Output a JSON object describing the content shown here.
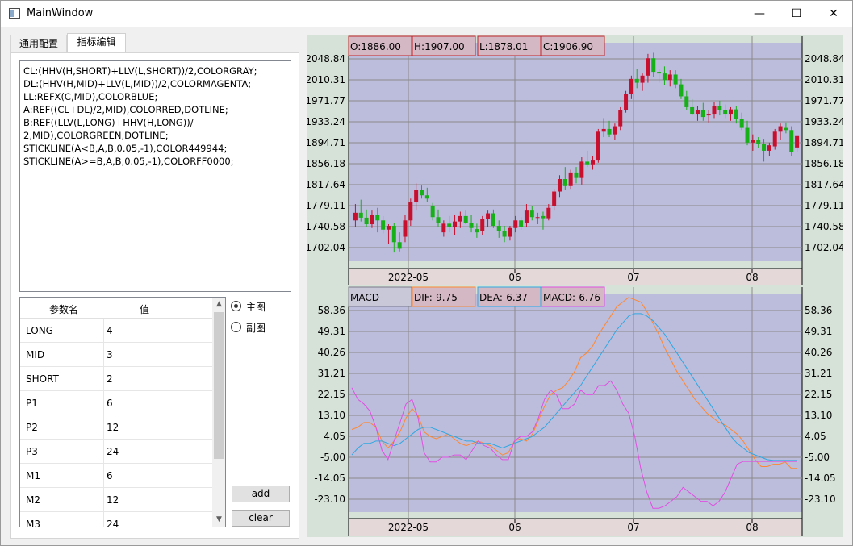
{
  "window": {
    "title": "MainWindow",
    "minimize": "—",
    "maximize": "☐",
    "close": "✕"
  },
  "tabs": [
    {
      "label": "通用配置"
    },
    {
      "label": "指标编辑"
    }
  ],
  "editor": {
    "code": "CL:(HHV(H,SHORT)+LLV(L,SHORT))/2,COLORGRAY;\nDL:(HHV(H,MID)+LLV(L,MID))/2,COLORMAGENTA;\nLL:REFX(C,MID),COLORBLUE;\nA:REF((CL+DL)/2,MID),COLORRED,DOTLINE;\nB:REF((LLV(L,LONG)+HHV(H,LONG))/\n2,MID),COLORGREEN,DOTLINE;\nSTICKLINE(A<B,A,B,0.05,-1),COLOR449944;\nSTICKLINE(A>=B,A,B,0.05,-1),COLORFF0000;"
  },
  "params": {
    "headers": [
      "参数名",
      "值"
    ],
    "rows": [
      {
        "name": "LONG",
        "value": "4"
      },
      {
        "name": "MID",
        "value": "3"
      },
      {
        "name": "SHORT",
        "value": "2"
      },
      {
        "name": "P1",
        "value": "6"
      },
      {
        "name": "P2",
        "value": "12"
      },
      {
        "name": "P3",
        "value": "24"
      },
      {
        "name": "M1",
        "value": "6"
      },
      {
        "name": "M2",
        "value": "12"
      },
      {
        "name": "M3",
        "value": "24"
      }
    ]
  },
  "radios": {
    "main": "主图",
    "sub": "副图",
    "selected": "main"
  },
  "buttons": {
    "add": "add",
    "clear": "clear"
  },
  "colors": {
    "plot_bg": "#bcbcdc",
    "outer_bg": "#d6e2d7",
    "up": "#c8102e",
    "down": "#18b018",
    "dif": "#ff8830",
    "dea": "#30a8e0",
    "macd": "#e050e0"
  },
  "chart_data": [
    {
      "type": "candlestick",
      "header": [
        "O:1886.00",
        "H:1907.00",
        "L:1878.01",
        "C:1906.90"
      ],
      "y_ticks": [
        "2048.84",
        "2010.31",
        "1971.77",
        "1933.24",
        "1894.71",
        "1856.18",
        "1817.64",
        "1779.11",
        "1740.58",
        "1702.04"
      ],
      "x_ticks": [
        "2022-05",
        "06",
        "07",
        "08"
      ],
      "ylim": [
        1684,
        2063
      ],
      "candles": [
        [
          1752,
          1782,
          1740,
          1766
        ],
        [
          1766,
          1790,
          1750,
          1757
        ],
        [
          1757,
          1772,
          1740,
          1745
        ],
        [
          1745,
          1770,
          1738,
          1762
        ],
        [
          1762,
          1775,
          1730,
          1752
        ],
        [
          1752,
          1760,
          1728,
          1735
        ],
        [
          1735,
          1745,
          1708,
          1742
        ],
        [
          1742,
          1748,
          1693,
          1712
        ],
        [
          1712,
          1730,
          1695,
          1700
        ],
        [
          1722,
          1762,
          1712,
          1752
        ],
        [
          1752,
          1792,
          1742,
          1785
        ],
        [
          1785,
          1820,
          1770,
          1808
        ],
        [
          1808,
          1816,
          1792,
          1798
        ],
        [
          1798,
          1812,
          1785,
          1792
        ],
        [
          1778,
          1784,
          1752,
          1758
        ],
        [
          1758,
          1772,
          1740,
          1748
        ],
        [
          1730,
          1752,
          1722,
          1746
        ],
        [
          1746,
          1760,
          1730,
          1740
        ],
        [
          1740,
          1762,
          1725,
          1750
        ],
        [
          1750,
          1768,
          1738,
          1760
        ],
        [
          1760,
          1770,
          1745,
          1748
        ],
        [
          1748,
          1762,
          1730,
          1738
        ],
        [
          1736,
          1746,
          1720,
          1730
        ],
        [
          1732,
          1760,
          1725,
          1755
        ],
        [
          1755,
          1770,
          1740,
          1765
        ],
        [
          1765,
          1772,
          1738,
          1742
        ],
        [
          1742,
          1752,
          1720,
          1732
        ],
        [
          1732,
          1742,
          1712,
          1722
        ],
        [
          1722,
          1742,
          1715,
          1738
        ],
        [
          1738,
          1760,
          1730,
          1752
        ],
        [
          1752,
          1758,
          1735,
          1740
        ],
        [
          1748,
          1782,
          1740,
          1770
        ],
        [
          1770,
          1778,
          1752,
          1758
        ],
        [
          1757,
          1766,
          1745,
          1758
        ],
        [
          1760,
          1768,
          1735,
          1756
        ],
        [
          1756,
          1782,
          1752,
          1775
        ],
        [
          1778,
          1810,
          1770,
          1805
        ],
        [
          1805,
          1835,
          1795,
          1828
        ],
        [
          1828,
          1850,
          1808,
          1815
        ],
        [
          1815,
          1845,
          1810,
          1840
        ],
        [
          1840,
          1850,
          1820,
          1830
        ],
        [
          1830,
          1868,
          1818,
          1860
        ],
        [
          1860,
          1880,
          1850,
          1855
        ],
        [
          1855,
          1870,
          1845,
          1862
        ],
        [
          1862,
          1920,
          1858,
          1915
        ],
        [
          1915,
          1940,
          1905,
          1920
        ],
        [
          1920,
          1935,
          1905,
          1910
        ],
        [
          1910,
          1930,
          1900,
          1925
        ],
        [
          1925,
          1960,
          1918,
          1955
        ],
        [
          1955,
          1990,
          1950,
          1985
        ],
        [
          1985,
          2018,
          1975,
          2012
        ],
        [
          2012,
          2030,
          1995,
          2005
        ],
        [
          2005,
          2022,
          1990,
          2018
        ],
        [
          2018,
          2058,
          2005,
          2050
        ],
        [
          2050,
          2060,
          2015,
          2025
        ],
        [
          2025,
          2030,
          2005,
          2022
        ],
        [
          2022,
          2035,
          2000,
          2010
        ],
        [
          2010,
          2028,
          1998,
          2020
        ],
        [
          2020,
          2028,
          1995,
          2002
        ],
        [
          2002,
          2012,
          1975,
          1980
        ],
        [
          1980,
          1990,
          1955,
          1960
        ],
        [
          1960,
          1975,
          1945,
          1948
        ],
        [
          1948,
          1962,
          1935,
          1955
        ],
        [
          1955,
          1968,
          1935,
          1942
        ],
        [
          1945,
          1955,
          1932,
          1948
        ],
        [
          1948,
          1970,
          1940,
          1962
        ],
        [
          1962,
          1972,
          1945,
          1955
        ],
        [
          1955,
          1965,
          1940,
          1948
        ],
        [
          1948,
          1960,
          1935,
          1956
        ],
        [
          1956,
          1962,
          1930,
          1938
        ],
        [
          1938,
          1950,
          1918,
          1922
        ],
        [
          1922,
          1935,
          1890,
          1895
        ],
        [
          1895,
          1910,
          1880,
          1900
        ],
        [
          1900,
          1905,
          1885,
          1892
        ],
        [
          1892,
          1902,
          1860,
          1880
        ],
        [
          1880,
          1895,
          1870,
          1890
        ],
        [
          1888,
          1920,
          1882,
          1915
        ],
        [
          1915,
          1930,
          1900,
          1925
        ],
        [
          1922,
          1932,
          1912,
          1918
        ],
        [
          1918,
          1925,
          1870,
          1878
        ],
        [
          1886,
          1907,
          1878,
          1906.9
        ]
      ]
    },
    {
      "type": "line",
      "header": [
        "MACD",
        "DIF:-9.75",
        "DEA:-6.37",
        "MACD:-6.76"
      ],
      "y_ticks": [
        "58.36",
        "49.31",
        "40.26",
        "31.21",
        "22.15",
        "13.10",
        "4.05",
        "-5.00",
        "-14.05",
        "-23.10"
      ],
      "x_ticks": [
        "2022-05",
        "06",
        "07",
        "08"
      ],
      "ylim": [
        -28.5,
        63.5
      ],
      "series": [
        {
          "name": "DIF",
          "values": [
            7,
            8,
            10,
            10,
            8,
            2,
            -1,
            2,
            6,
            12,
            16,
            13,
            6,
            4,
            3,
            4,
            5,
            3,
            1,
            0,
            1,
            2,
            1,
            0,
            -2,
            -4,
            -3,
            2,
            3,
            2,
            5,
            11,
            17,
            22,
            24,
            25,
            28,
            32,
            38,
            40,
            43,
            48,
            52,
            56,
            60,
            62,
            64,
            63,
            62,
            58,
            53,
            48,
            42,
            37,
            32,
            28,
            24,
            20,
            17,
            14,
            12,
            10,
            9,
            7,
            5,
            2,
            -2,
            -6,
            -9,
            -9,
            -8,
            -8,
            -7,
            -9.75,
            -9.75
          ]
        },
        {
          "name": "DEA",
          "values": [
            -4,
            -1,
            1,
            1,
            2,
            2,
            1,
            0,
            1,
            3,
            5,
            7,
            8,
            8,
            7,
            6,
            5,
            4,
            3,
            2,
            2,
            1,
            1,
            1,
            0,
            -1,
            0,
            1,
            2,
            3,
            4,
            6,
            8,
            11,
            14,
            17,
            20,
            23,
            26,
            30,
            34,
            38,
            42,
            46,
            50,
            53,
            56,
            57,
            57,
            56,
            54,
            51,
            48,
            44,
            40,
            36,
            32,
            28,
            24,
            20,
            16,
            12,
            8,
            4,
            1,
            -1,
            -3,
            -4,
            -5,
            -6,
            -6.37,
            -6.37,
            -6.37,
            -6.37,
            -6.37
          ]
        },
        {
          "name": "MACD",
          "values": [
            25,
            20,
            18,
            15,
            8,
            -2,
            -6,
            2,
            10,
            18,
            20,
            12,
            -3,
            -7,
            -7,
            -5,
            -5,
            -4,
            -4,
            -6,
            -2,
            2,
            0,
            -1,
            -4,
            -6,
            -6,
            2,
            4,
            4,
            6,
            12,
            20,
            24,
            22,
            16,
            16,
            18,
            24,
            22,
            22,
            26,
            26,
            28,
            24,
            18,
            14,
            4,
            -10,
            -20,
            -27,
            -27,
            -26,
            -24,
            -22,
            -18,
            -20,
            -22,
            -24,
            -24,
            -26,
            -24,
            -20,
            -14,
            -8,
            -6.76,
            -6.76,
            -6.76,
            -6.76,
            -6.76,
            -6.76,
            -6.76,
            -6.76,
            -6.76,
            -6.76
          ]
        }
      ]
    }
  ]
}
